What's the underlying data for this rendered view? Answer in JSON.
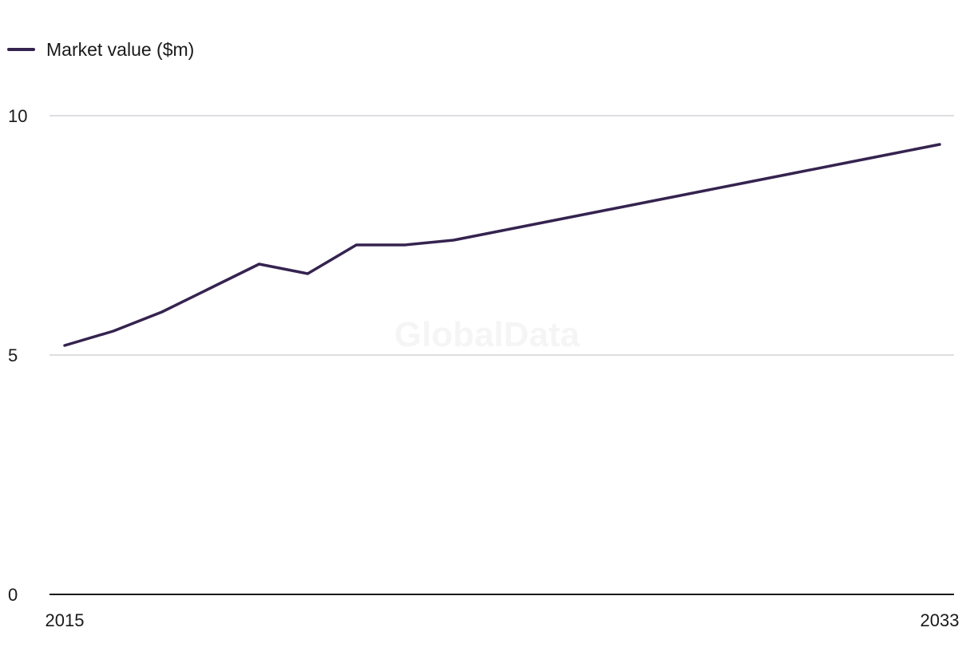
{
  "watermark": "GlobalData",
  "chart_data": {
    "type": "line",
    "title": "",
    "xlabel": "",
    "ylabel": "",
    "ylim": [
      0,
      10
    ],
    "yticks": [
      0,
      5,
      10
    ],
    "xticks": [
      "2015",
      "2033"
    ],
    "grid": true,
    "legend_position": "top-left",
    "x": [
      2015,
      2016,
      2017,
      2018,
      2019,
      2020,
      2021,
      2022,
      2023,
      2024,
      2025,
      2026,
      2027,
      2028,
      2029,
      2030,
      2031,
      2032,
      2033
    ],
    "series": [
      {
        "name": "Market value ($m)",
        "color": "#35234f",
        "values": [
          5.2,
          5.5,
          5.9,
          6.4,
          6.9,
          6.7,
          7.3,
          7.3,
          7.4,
          7.6,
          7.8,
          8.0,
          8.2,
          8.4,
          8.6,
          8.8,
          9.0,
          9.2,
          9.4
        ]
      }
    ]
  }
}
